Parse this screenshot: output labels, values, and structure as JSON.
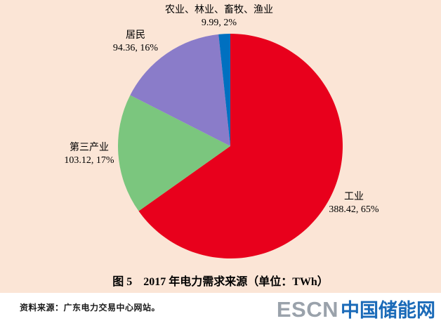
{
  "chart_data": {
    "type": "pie",
    "title": "图 5　2017 年电力需求来源（单位：TWh）",
    "unit": "TWh",
    "direction": "clockwise",
    "start_angle_deg": 0,
    "legend_position": "none",
    "slices": [
      {
        "label": "工业",
        "value": 388.42,
        "percent": 65,
        "value_text": "388.42, 65%",
        "color": "#e8001c"
      },
      {
        "label": "第三产业",
        "value": 103.12,
        "percent": 17,
        "value_text": "103.12, 17%",
        "color": "#7bc67e"
      },
      {
        "label": "居民",
        "value": 94.36,
        "percent": 16,
        "value_text": "94.36, 16%",
        "color": "#8a7cc9"
      },
      {
        "label": "农业、林业、畜牧、渔业",
        "value": 9.99,
        "percent": 2,
        "value_text": "9.99, 2%",
        "color": "#0070c0"
      }
    ]
  },
  "footer": {
    "source": "资料来源：广东电力交易中心网站。",
    "logo_en": "ESCN",
    "logo_cn": "中国储能网"
  },
  "colors": {
    "panel_bg": "#fbe5d6",
    "page_bg": "#ffffff",
    "logo_en_color": "#9aa2ab",
    "logo_cn_color": "#1a6ab8"
  }
}
